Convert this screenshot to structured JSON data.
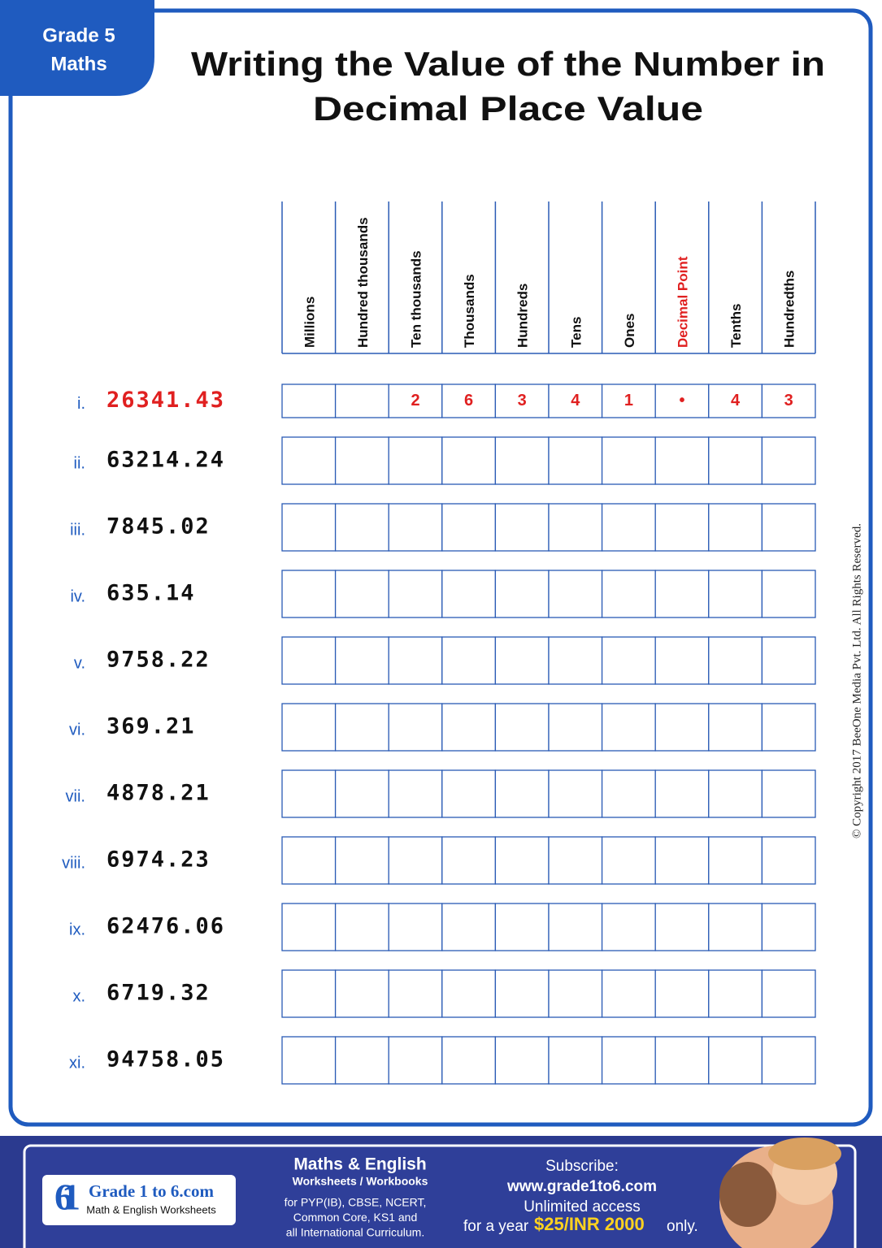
{
  "badge": {
    "grade": "Grade 5",
    "subject": "Maths"
  },
  "title": [
    "Writing the Value of the Number in",
    "Decimal Place Value"
  ],
  "columns": [
    "Millions",
    "Hundred thousands",
    "Ten thousands",
    "Thousands",
    "Hundreds",
    "Tens",
    "Ones",
    "Decimal Point",
    "Tenths",
    "Hundredths"
  ],
  "example_digits": [
    "2",
    "6",
    "3",
    "4",
    "1",
    "•",
    "4",
    "3"
  ],
  "rows": [
    {
      "numeral": "i.",
      "number": "26341.43"
    },
    {
      "numeral": "ii.",
      "number": "63214.24"
    },
    {
      "numeral": "iii.",
      "number": "7845.02"
    },
    {
      "numeral": "iv.",
      "number": "635.14"
    },
    {
      "numeral": "v.",
      "number": "9758.22"
    },
    {
      "numeral": "vi.",
      "number": "369.21"
    },
    {
      "numeral": "vii.",
      "number": "4878.21"
    },
    {
      "numeral": "viii.",
      "number": "6974.23"
    },
    {
      "numeral": "ix.",
      "number": "62476.06"
    },
    {
      "numeral": "x.",
      "number": "6719.32"
    },
    {
      "numeral": "xi.",
      "number": "94758.05"
    }
  ],
  "copyright": "© Copyright 2017 BeeOne Media Pvt. Ltd. All Rights Reserved.",
  "footer": {
    "logo": {
      "mark": "61",
      "name": "Grade 1 to 6.com",
      "tagline": "Math & English Worksheets"
    },
    "products": {
      "heading": "Maths & English",
      "subheading": "Worksheets / Workbooks",
      "lines": [
        "for PYP(IB), CBSE, NCERT,",
        "Common Core, KS1 and",
        "all International Curriculum."
      ]
    },
    "subscribe": {
      "heading": "Subscribe:",
      "url": "www.grade1to6.com",
      "line": "Unlimited access",
      "prefix": "for a year",
      "price": "$25/INR 2000",
      "suffix": "only."
    }
  }
}
